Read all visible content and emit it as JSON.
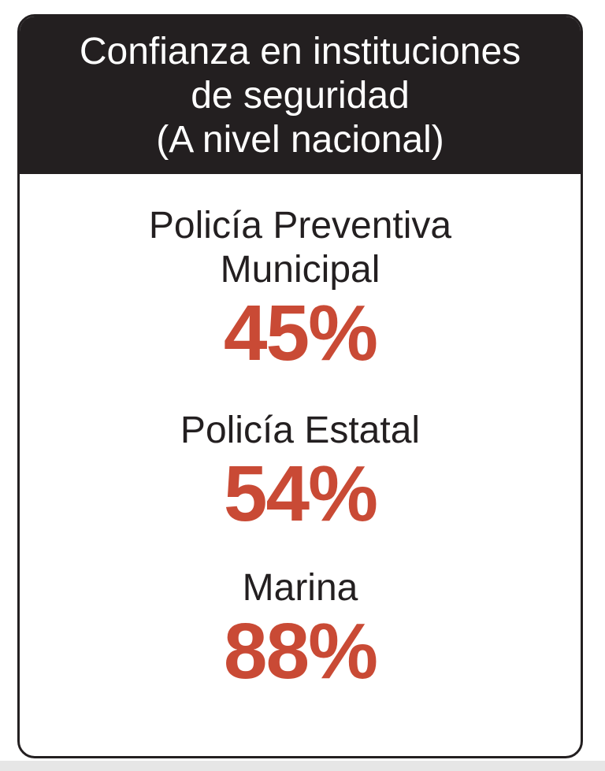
{
  "header": {
    "title_lines": [
      "Confianza en instituciones",
      "de seguridad",
      "(A nivel nacional)"
    ]
  },
  "stats": [
    {
      "label_lines": [
        "Policía Preventiva",
        "Municipal"
      ],
      "value": "45%",
      "percent": 45
    },
    {
      "label_lines": [
        "Policía Estatal"
      ],
      "value": "54%",
      "percent": 54
    },
    {
      "label_lines": [
        "Marina"
      ],
      "value": "88%",
      "percent": 88
    }
  ],
  "colors": {
    "header_bg": "#231f20",
    "header_text": "#ffffff",
    "label_text": "#231f20",
    "value_text": "#c94a35",
    "border": "#231f20"
  }
}
